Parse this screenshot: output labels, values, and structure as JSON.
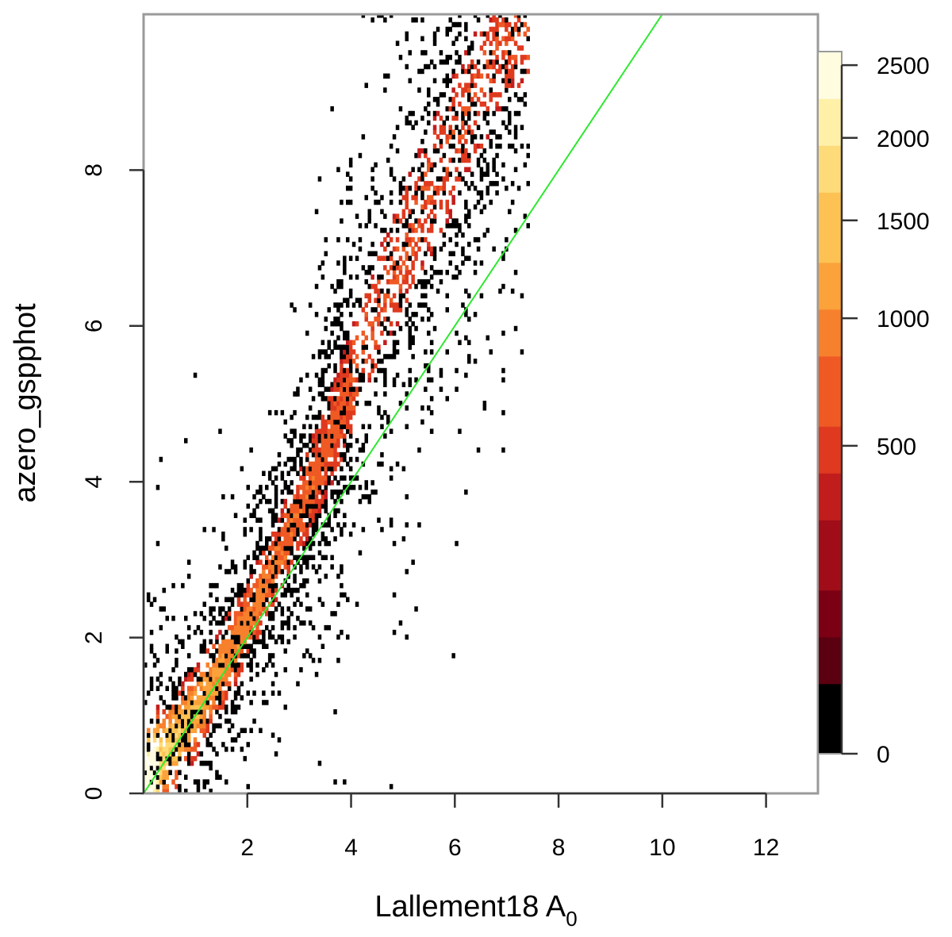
{
  "chart_data": {
    "type": "heatmap",
    "xlabel": "Lallement18 A",
    "xlabel_subscript": "0",
    "ylabel": "azero_gspphot",
    "xlim": [
      0,
      13
    ],
    "ylim": [
      0,
      10
    ],
    "x_ticks": [
      2,
      4,
      6,
      8,
      10,
      12
    ],
    "y_ticks": [
      0,
      2,
      4,
      6,
      8
    ],
    "x_tick_labels": [
      "2",
      "4",
      "6",
      "8",
      "10",
      "12"
    ],
    "y_tick_labels": [
      "0",
      "2",
      "4",
      "6",
      "8"
    ],
    "colorbar": {
      "min": 0,
      "max": 2600,
      "ticks": [
        0,
        500,
        1000,
        1500,
        2000,
        2500
      ],
      "tick_labels": [
        "0",
        "500",
        "1000",
        "1500",
        "2000",
        "2500"
      ],
      "scale": "sqrt",
      "colors": [
        "#000000",
        "#5a0010",
        "#7c0014",
        "#a00d18",
        "#c21d1d",
        "#df3a1f",
        "#ef5a24",
        "#f7802c",
        "#fba23a",
        "#fdc253",
        "#fedb79",
        "#fff0a8",
        "#fffce0"
      ]
    },
    "density_ridge": [
      {
        "x": 0.1,
        "y_center": 0.2,
        "y_width": 0.9
      },
      {
        "x": 0.3,
        "y_center": 0.4,
        "y_width": 0.9
      },
      {
        "x": 0.6,
        "y_center": 0.65,
        "y_width": 0.9
      },
      {
        "x": 1.0,
        "y_center": 1.05,
        "y_width": 0.9
      },
      {
        "x": 1.5,
        "y_center": 1.6,
        "y_width": 0.9
      },
      {
        "x": 2.0,
        "y_center": 2.2,
        "y_width": 0.9
      },
      {
        "x": 2.5,
        "y_center": 2.9,
        "y_width": 1.0
      },
      {
        "x": 3.0,
        "y_center": 3.6,
        "y_width": 1.1
      },
      {
        "x": 3.5,
        "y_center": 4.4,
        "y_width": 1.3
      },
      {
        "x": 4.0,
        "y_center": 5.3,
        "y_width": 1.5
      },
      {
        "x": 4.5,
        "y_center": 6.2,
        "y_width": 1.7
      },
      {
        "x": 5.0,
        "y_center": 7.0,
        "y_width": 1.9
      },
      {
        "x": 5.5,
        "y_center": 7.7,
        "y_width": 2.0
      },
      {
        "x": 6.0,
        "y_center": 8.4,
        "y_width": 2.1
      },
      {
        "x": 6.5,
        "y_center": 9.1,
        "y_width": 2.1
      },
      {
        "x": 7.0,
        "y_center": 9.8,
        "y_width": 2.1
      }
    ],
    "reference_line": {
      "slope": 1.0,
      "intercept": 0.0,
      "color": "#2ee82e"
    }
  }
}
